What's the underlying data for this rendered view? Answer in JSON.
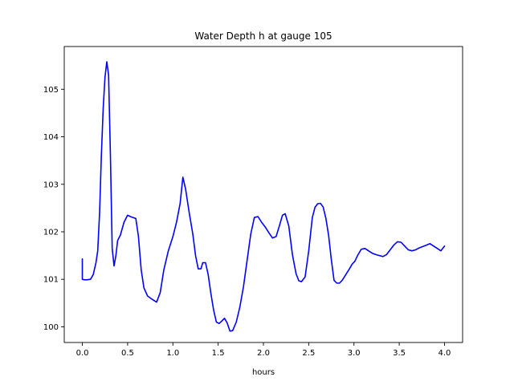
{
  "chart_data": {
    "type": "line",
    "title": "Water Depth h at gauge 105",
    "xlabel": "hours",
    "ylabel": "",
    "xlim": [
      -0.2,
      4.2
    ],
    "ylim": [
      99.67,
      105.9
    ],
    "xticks": [
      0.0,
      0.5,
      1.0,
      1.5,
      2.0,
      2.5,
      3.0,
      3.5,
      4.0
    ],
    "xtick_labels": [
      "0.0",
      "0.5",
      "1.0",
      "1.5",
      "2.0",
      "2.5",
      "3.0",
      "3.5",
      "4.0"
    ],
    "yticks": [
      100,
      101,
      102,
      103,
      104,
      105
    ],
    "ytick_labels": [
      "100",
      "101",
      "102",
      "103",
      "104",
      "105"
    ],
    "grid": false,
    "color": "#0000ff",
    "series": [
      {
        "x": [
          0.0,
          0.0,
          0.02,
          0.05,
          0.09,
          0.12,
          0.15,
          0.17,
          0.19,
          0.21,
          0.23,
          0.25,
          0.27,
          0.29,
          0.31,
          0.33,
          0.35,
          0.37,
          0.39,
          0.42,
          0.46,
          0.5,
          0.53,
          0.56,
          0.59,
          0.62,
          0.65,
          0.68,
          0.72,
          0.77,
          0.82,
          0.86,
          0.9,
          0.95,
          1.0,
          1.04,
          1.08,
          1.11,
          1.14,
          1.18,
          1.22,
          1.25,
          1.28,
          1.31,
          1.33,
          1.36,
          1.39,
          1.42,
          1.45,
          1.48,
          1.51,
          1.54,
          1.57,
          1.6,
          1.63,
          1.66,
          1.7,
          1.74,
          1.78,
          1.82,
          1.86,
          1.9,
          1.94,
          1.98,
          2.02,
          2.06,
          2.1,
          2.14,
          2.18,
          2.21,
          2.24,
          2.28,
          2.32,
          2.36,
          2.39,
          2.42,
          2.46,
          2.5,
          2.54,
          2.57,
          2.6,
          2.63,
          2.66,
          2.69,
          2.72,
          2.75,
          2.78,
          2.81,
          2.84,
          2.87,
          2.91,
          2.95,
          2.98,
          3.01,
          3.04,
          3.08,
          3.12,
          3.16,
          3.2,
          3.24,
          3.28,
          3.32,
          3.36,
          3.4,
          3.44,
          3.48,
          3.52,
          3.56,
          3.6,
          3.64,
          3.68,
          3.72,
          3.76,
          3.8,
          3.84,
          3.88,
          3.92,
          3.96,
          4.0
        ],
        "y": [
          101.43,
          101.0,
          100.99,
          100.99,
          101.0,
          101.1,
          101.35,
          101.6,
          102.4,
          103.6,
          104.6,
          105.25,
          105.58,
          105.3,
          103.6,
          101.65,
          101.28,
          101.5,
          101.82,
          101.93,
          102.2,
          102.35,
          102.32,
          102.3,
          102.28,
          101.9,
          101.2,
          100.82,
          100.65,
          100.58,
          100.52,
          100.72,
          101.2,
          101.6,
          101.9,
          102.2,
          102.6,
          103.15,
          102.9,
          102.4,
          101.95,
          101.5,
          101.22,
          101.22,
          101.35,
          101.35,
          101.1,
          100.7,
          100.35,
          100.1,
          100.07,
          100.12,
          100.18,
          100.08,
          99.91,
          99.92,
          100.1,
          100.42,
          100.85,
          101.4,
          101.95,
          102.3,
          102.32,
          102.2,
          102.1,
          101.98,
          101.87,
          101.9,
          102.15,
          102.35,
          102.38,
          102.12,
          101.52,
          101.12,
          100.97,
          100.95,
          101.05,
          101.6,
          102.3,
          102.52,
          102.59,
          102.6,
          102.52,
          102.28,
          101.92,
          101.42,
          100.98,
          100.92,
          100.92,
          100.98,
          101.1,
          101.22,
          101.32,
          101.38,
          101.5,
          101.63,
          101.65,
          101.6,
          101.55,
          101.52,
          101.5,
          101.48,
          101.52,
          101.62,
          101.72,
          101.79,
          101.78,
          101.7,
          101.62,
          101.6,
          101.62,
          101.66,
          101.69,
          101.72,
          101.75,
          101.7,
          101.65,
          101.6,
          101.7
        ]
      }
    ]
  }
}
